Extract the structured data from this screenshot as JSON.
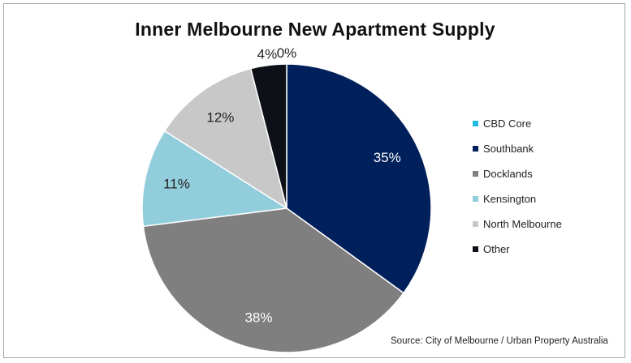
{
  "chart_data": {
    "type": "pie",
    "title": "Inner Melbourne New Apartment Supply",
    "slices": [
      {
        "label": "CBD Core",
        "value": 0,
        "display": "0%",
        "color": "#1fbde0"
      },
      {
        "label": "Southbank",
        "value": 35,
        "display": "35%",
        "color": "#00205b"
      },
      {
        "label": "Docklands",
        "value": 38,
        "display": "38%",
        "color": "#7f7f7f"
      },
      {
        "label": "Kensington",
        "value": 11,
        "display": "11%",
        "color": "#92cddc"
      },
      {
        "label": "North Melbourne",
        "value": 12,
        "display": "12%",
        "color": "#c8c8c8"
      },
      {
        "label": "Other",
        "value": 4,
        "display": "4%",
        "color": "#0d1117"
      }
    ],
    "legend_position": "right",
    "source": "Source: City of Melbourne / Urban Property Australia"
  }
}
